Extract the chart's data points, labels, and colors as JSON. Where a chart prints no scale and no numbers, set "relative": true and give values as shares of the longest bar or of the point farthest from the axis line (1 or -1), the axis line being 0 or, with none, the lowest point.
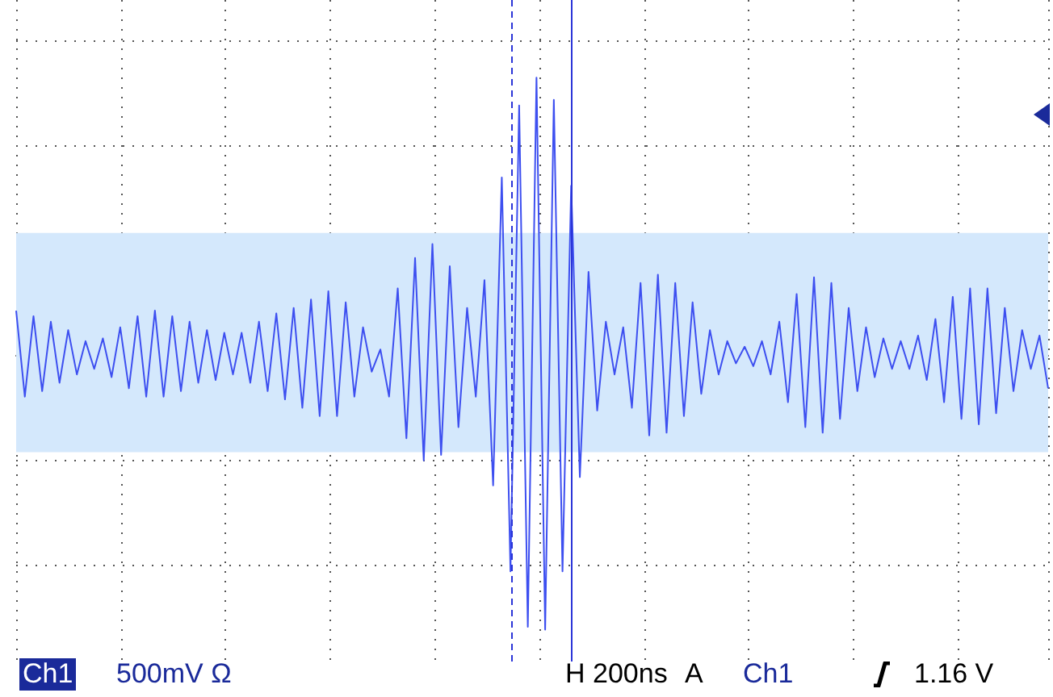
{
  "chart_data": {
    "type": "line",
    "relative": true,
    "grid": true,
    "categories": [
      null,
      null,
      null,
      null,
      null,
      null,
      null,
      null,
      null,
      null,
      null,
      null,
      null,
      null,
      null,
      null,
      null,
      null,
      null,
      null,
      null,
      null,
      null,
      null,
      null,
      null,
      null,
      null,
      null,
      null,
      null,
      null,
      null,
      null,
      null,
      null,
      null,
      null,
      null,
      null,
      null,
      null,
      null,
      null,
      null,
      null,
      null,
      null,
      null,
      null,
      null,
      null,
      null,
      null,
      null,
      null,
      null,
      null,
      null,
      null,
      null,
      null,
      null,
      null,
      null,
      null,
      null,
      null,
      null,
      null,
      null,
      null,
      null,
      null,
      null,
      null,
      null,
      null,
      null,
      null,
      null,
      null,
      null,
      null,
      null,
      null,
      null,
      null,
      null,
      null,
      null,
      null,
      null,
      null,
      null,
      null,
      null,
      null,
      null,
      null,
      null,
      null,
      null,
      null,
      null,
      null,
      null,
      null,
      null,
      null,
      null,
      null,
      null,
      null,
      null,
      null,
      null,
      null,
      null,
      null
    ],
    "series": [
      {
        "color": "#3d4ff0",
        "values": [
          0.16,
          -0.15,
          0.14,
          -0.13,
          0.12,
          -0.1,
          0.09,
          -0.07,
          0.05,
          -0.05,
          0.06,
          -0.08,
          0.1,
          -0.12,
          0.14,
          -0.15,
          0.16,
          -0.15,
          0.14,
          -0.13,
          0.12,
          -0.1,
          0.09,
          -0.09,
          0.08,
          -0.07,
          0.08,
          -0.1,
          0.12,
          -0.13,
          0.15,
          -0.16,
          0.17,
          -0.19,
          0.2,
          -0.22,
          0.23,
          -0.22,
          0.19,
          -0.15,
          0.1,
          -0.06,
          0.02,
          -0.15,
          0.24,
          -0.3,
          0.35,
          -0.38,
          0.4,
          -0.36,
          0.32,
          -0.26,
          0.17,
          -0.15,
          0.27,
          -0.47,
          0.64,
          -0.78,
          0.9,
          -0.98,
          1,
          -0.99,
          0.92,
          -0.78,
          0.61,
          -0.44,
          0.3,
          -0.2,
          0.12,
          -0.07,
          0.1,
          -0.19,
          0.26,
          -0.29,
          0.29,
          -0.28,
          0.26,
          -0.22,
          0.19,
          -0.14,
          0.09,
          -0.07,
          0.05,
          -0.03,
          0.03,
          -0.04,
          0.05,
          -0.07,
          0.12,
          -0.17,
          0.22,
          -0.26,
          0.28,
          -0.28,
          0.26,
          -0.23,
          0.17,
          -0.13,
          0.1,
          -0.08,
          0.06,
          -0.05,
          0.05,
          -0.05,
          0.07,
          -0.09,
          0.13,
          -0.17,
          0.21,
          -0.23,
          0.24,
          -0.25,
          0.24,
          -0.21,
          0.17,
          -0.13,
          0.09,
          -0.05,
          0.07,
          -0.12
        ]
      }
    ],
    "bands": [
      {
        "axis": "y",
        "from": -0.35,
        "to": 0.44,
        "color": "#d4e8fc"
      }
    ],
    "annotations": [
      "Ch1",
      "500mV Ω",
      "H 200ns",
      "A",
      "Ch1",
      "1.16 V"
    ]
  }
}
